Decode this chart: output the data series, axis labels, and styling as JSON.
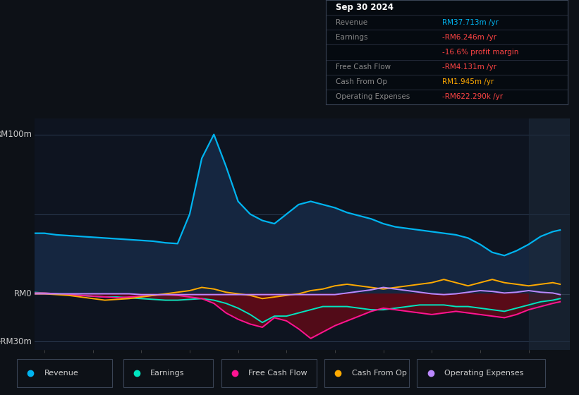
{
  "bg_color": "#0d1117",
  "plot_bg_color": "#0e1420",
  "years": [
    2013.75,
    2014.0,
    2014.25,
    2014.5,
    2014.75,
    2015.0,
    2015.25,
    2015.5,
    2015.75,
    2016.0,
    2016.25,
    2016.5,
    2016.75,
    2017.0,
    2017.25,
    2017.5,
    2017.75,
    2018.0,
    2018.25,
    2018.5,
    2018.75,
    2019.0,
    2019.25,
    2019.5,
    2019.75,
    2020.0,
    2020.25,
    2020.5,
    2020.75,
    2021.0,
    2021.25,
    2021.5,
    2021.75,
    2022.0,
    2022.25,
    2022.5,
    2022.75,
    2023.0,
    2023.25,
    2023.5,
    2023.75,
    2024.0,
    2024.25,
    2024.5,
    2024.65
  ],
  "revenue": [
    38,
    38,
    37,
    36.5,
    36,
    35.5,
    35,
    34.5,
    34,
    33.5,
    33,
    32,
    31.5,
    50,
    85,
    100,
    80,
    58,
    50,
    46,
    44,
    50,
    56,
    58,
    56,
    54,
    51,
    49,
    47,
    44,
    42,
    41,
    40,
    39,
    38,
    37,
    35,
    31,
    26,
    24,
    27,
    31,
    36,
    39,
    40
  ],
  "earnings": [
    1,
    0.5,
    0,
    -0.5,
    -1,
    -1.5,
    -2,
    -2,
    -2.5,
    -3,
    -3.5,
    -4,
    -4,
    -3.5,
    -3,
    -4,
    -6,
    -9,
    -13,
    -18,
    -14,
    -14,
    -12,
    -10,
    -8,
    -8,
    -8,
    -9,
    -10,
    -10,
    -9,
    -8,
    -7,
    -7,
    -7,
    -8,
    -8,
    -9,
    -10,
    -11,
    -9,
    -7,
    -5,
    -4,
    -3
  ],
  "free_cash_flow": [
    0.5,
    0.5,
    0,
    -0.5,
    -1,
    -1.5,
    -2,
    -2.5,
    -2,
    -1.5,
    -1,
    -0.5,
    -1,
    -2,
    -3,
    -6,
    -12,
    -16,
    -19,
    -21,
    -15,
    -17,
    -22,
    -28,
    -24,
    -20,
    -17,
    -14,
    -11,
    -9,
    -10,
    -11,
    -12,
    -13,
    -12,
    -11,
    -12,
    -13,
    -14,
    -15,
    -13,
    -10,
    -8,
    -6,
    -5
  ],
  "cash_from_op": [
    0,
    0,
    -0.5,
    -1,
    -2,
    -3,
    -4,
    -3.5,
    -3,
    -2,
    -1,
    0,
    1,
    2,
    4,
    3,
    1,
    0,
    -1,
    -3,
    -2,
    -1,
    0,
    2,
    3,
    5,
    6,
    5,
    4,
    3,
    4,
    5,
    6,
    7,
    9,
    7,
    5,
    7,
    9,
    7,
    6,
    5,
    6,
    7,
    6
  ],
  "operating_expenses": [
    0,
    0,
    0,
    0,
    0,
    0,
    0,
    0,
    0,
    -0.5,
    -0.5,
    -0.5,
    -0.5,
    -0.5,
    -0.5,
    -0.5,
    -0.5,
    -0.5,
    -0.5,
    -0.5,
    -0.5,
    -0.5,
    -0.5,
    -0.5,
    -0.5,
    -0.5,
    0.5,
    1.5,
    2.5,
    4,
    3,
    2,
    1,
    0,
    -0.5,
    0,
    1,
    2,
    1.5,
    0.5,
    1,
    2,
    1,
    0.5,
    -0.5
  ],
  "revenue_color": "#00b4f0",
  "revenue_fill": "#152640",
  "earnings_color": "#00e5c0",
  "earnings_fill": "#5a1520",
  "fcf_color": "#ff1493",
  "fcf_fill": "#5a0a18",
  "cashop_color": "#ffaa00",
  "opex_color": "#bb88ff",
  "ylim_min": -35,
  "ylim_max": 110,
  "xlim_min": 2013.8,
  "xlim_max": 2024.85,
  "shade_start": 2024.0,
  "xticks": [
    2014,
    2015,
    2016,
    2017,
    2018,
    2019,
    2020,
    2021,
    2022,
    2023,
    2024
  ],
  "info_box": {
    "date": "Sep 30 2024",
    "revenue_label": "Revenue",
    "revenue_val": "RM37.713m /yr",
    "revenue_color": "#00b4f0",
    "earnings_label": "Earnings",
    "earnings_val": "-RM6.246m /yr",
    "earnings_color": "#ff4444",
    "margin_val": "-16.6% profit margin",
    "margin_color": "#ff4444",
    "fcf_label": "Free Cash Flow",
    "fcf_val": "-RM4.131m /yr",
    "fcf_color": "#ff4444",
    "cashop_label": "Cash From Op",
    "cashop_val": "RM1.945m /yr",
    "cashop_color": "#ffaa00",
    "opex_label": "Operating Expenses",
    "opex_val": "-RM622.290k /yr",
    "opex_color": "#ff4444"
  },
  "legend_items": [
    {
      "label": "Revenue",
      "color": "#00b4f0"
    },
    {
      "label": "Earnings",
      "color": "#00e5c0"
    },
    {
      "label": "Free Cash Flow",
      "color": "#ff1493"
    },
    {
      "label": "Cash From Op",
      "color": "#ffaa00"
    },
    {
      "label": "Operating Expenses",
      "color": "#bb88ff"
    }
  ]
}
